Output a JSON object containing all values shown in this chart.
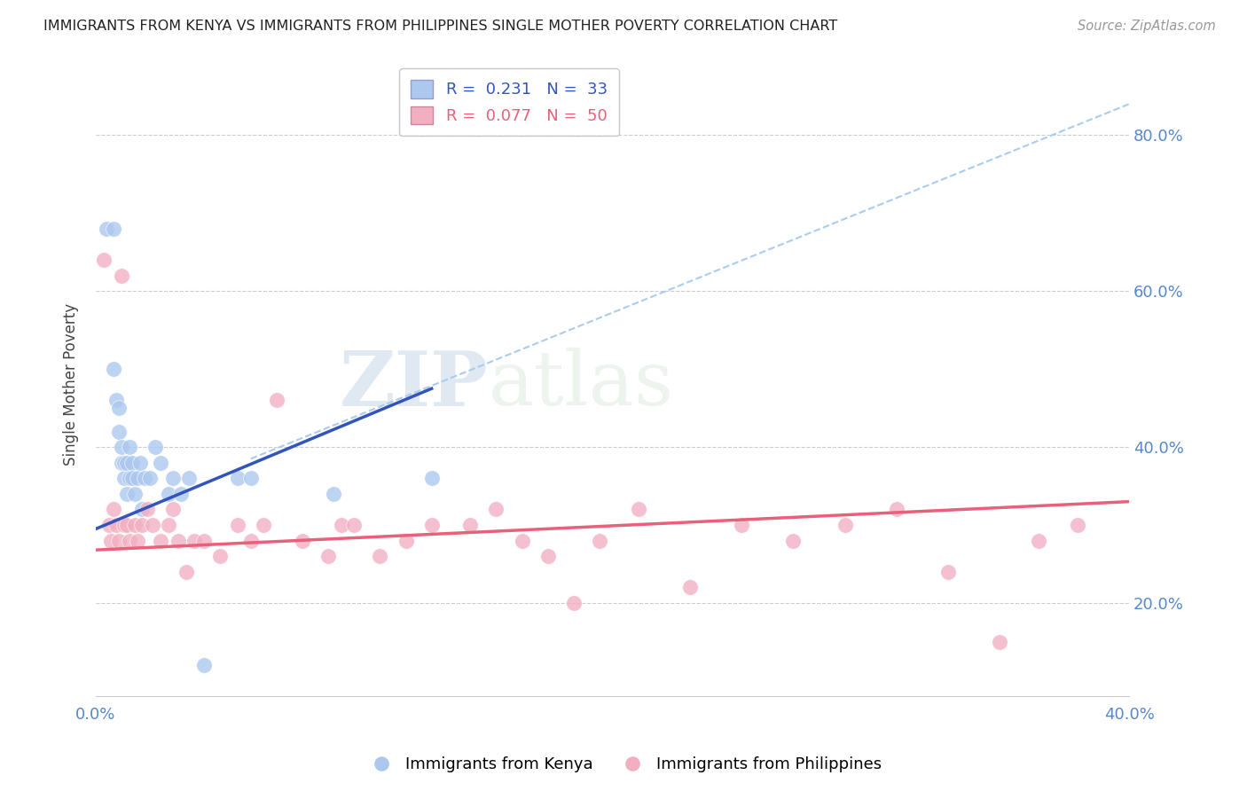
{
  "title": "IMMIGRANTS FROM KENYA VS IMMIGRANTS FROM PHILIPPINES SINGLE MOTHER POVERTY CORRELATION CHART",
  "source": "Source: ZipAtlas.com",
  "ylabel": "Single Mother Poverty",
  "xlim": [
    0.0,
    0.4
  ],
  "ylim": [
    0.08,
    0.88
  ],
  "xticks": [
    0.0,
    0.05,
    0.1,
    0.15,
    0.2,
    0.25,
    0.3,
    0.35,
    0.4
  ],
  "yticks": [
    0.2,
    0.4,
    0.6,
    0.8
  ],
  "yticklabels": [
    "20.0%",
    "40.0%",
    "60.0%",
    "80.0%"
  ],
  "legend_kenya": "R =  0.231   N =  33",
  "legend_phil": "R =  0.077   N =  50",
  "kenya_color": "#adc8ef",
  "phil_color": "#f2afc2",
  "kenya_line_color": "#3355bb",
  "phil_line_color": "#e8607a",
  "dashed_line_color": "#aaccee",
  "watermark_zip": "ZIP",
  "watermark_atlas": "atlas",
  "kenya_x": [
    0.004,
    0.007,
    0.007,
    0.008,
    0.009,
    0.009,
    0.01,
    0.01,
    0.011,
    0.011,
    0.012,
    0.012,
    0.013,
    0.013,
    0.014,
    0.014,
    0.015,
    0.016,
    0.017,
    0.018,
    0.019,
    0.021,
    0.023,
    0.025,
    0.028,
    0.03,
    0.033,
    0.036,
    0.042,
    0.055,
    0.06,
    0.092,
    0.13
  ],
  "kenya_y": [
    0.68,
    0.68,
    0.5,
    0.46,
    0.42,
    0.45,
    0.38,
    0.4,
    0.36,
    0.38,
    0.34,
    0.38,
    0.36,
    0.4,
    0.38,
    0.36,
    0.34,
    0.36,
    0.38,
    0.32,
    0.36,
    0.36,
    0.4,
    0.38,
    0.34,
    0.36,
    0.34,
    0.36,
    0.12,
    0.36,
    0.36,
    0.34,
    0.36
  ],
  "phil_x": [
    0.003,
    0.005,
    0.006,
    0.007,
    0.008,
    0.009,
    0.01,
    0.011,
    0.012,
    0.013,
    0.015,
    0.016,
    0.018,
    0.02,
    0.022,
    0.025,
    0.028,
    0.03,
    0.032,
    0.035,
    0.038,
    0.042,
    0.048,
    0.055,
    0.06,
    0.065,
    0.07,
    0.08,
    0.09,
    0.095,
    0.1,
    0.11,
    0.12,
    0.13,
    0.145,
    0.155,
    0.165,
    0.175,
    0.185,
    0.195,
    0.21,
    0.23,
    0.25,
    0.27,
    0.29,
    0.31,
    0.33,
    0.35,
    0.365,
    0.38
  ],
  "phil_y": [
    0.64,
    0.3,
    0.28,
    0.32,
    0.3,
    0.28,
    0.62,
    0.3,
    0.3,
    0.28,
    0.3,
    0.28,
    0.3,
    0.32,
    0.3,
    0.28,
    0.3,
    0.32,
    0.28,
    0.24,
    0.28,
    0.28,
    0.26,
    0.3,
    0.28,
    0.3,
    0.46,
    0.28,
    0.26,
    0.3,
    0.3,
    0.26,
    0.28,
    0.3,
    0.3,
    0.32,
    0.28,
    0.26,
    0.2,
    0.28,
    0.32,
    0.22,
    0.3,
    0.28,
    0.3,
    0.32,
    0.24,
    0.15,
    0.28,
    0.3
  ],
  "kenya_line_x": [
    0.0,
    0.13
  ],
  "kenya_line_y": [
    0.295,
    0.475
  ],
  "phil_line_x": [
    0.0,
    0.4
  ],
  "phil_line_y": [
    0.268,
    0.33
  ],
  "dash_line_x": [
    0.06,
    0.4
  ],
  "dash_line_y": [
    0.385,
    0.84
  ]
}
